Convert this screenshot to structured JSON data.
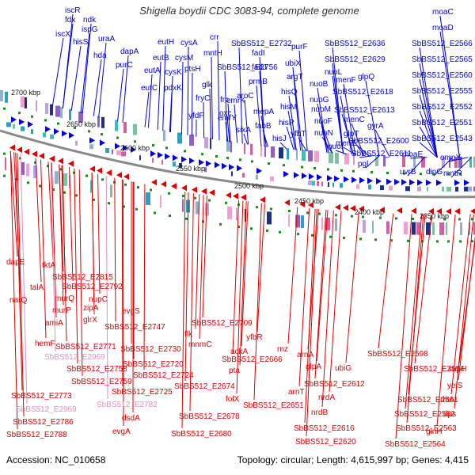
{
  "title": "Shigella boydii CDC 3083-94, complete genome",
  "footer": {
    "accession": "Accession: NC_010658",
    "summary": "Topology: circular; Length: 4,615,997 bp; Genes: 4,415"
  },
  "colors": {
    "forward": "#0000e0",
    "reverse": "#e00000",
    "highlight": "#e08fc0",
    "backbone": "#8a8a8a",
    "marker": "#1a8a1a"
  },
  "kbp_labels": [
    "2700 kbp",
    "2650 kbp",
    "2600 kbp",
    "2550 kbp",
    "2500 kbp",
    "2450 kbp",
    "2400 kbp",
    "2350 kbp"
  ],
  "top_labels": [
    {
      "text": "iscR"
    },
    {
      "text": "fdx"
    },
    {
      "text": "ndk"
    },
    {
      "text": "ispG"
    },
    {
      "text": "iscX"
    },
    {
      "text": "hisS"
    },
    {
      "text": "uraA"
    },
    {
      "text": "hda"
    },
    {
      "text": "dapA"
    },
    {
      "text": "purC"
    },
    {
      "text": "eutH"
    },
    {
      "text": "cysA"
    },
    {
      "text": "crr"
    },
    {
      "text": "eutB"
    },
    {
      "text": "cysM"
    },
    {
      "text": "mntH"
    },
    {
      "text": "SbBS512_E2732"
    },
    {
      "text": "eutA"
    },
    {
      "text": "cysK"
    },
    {
      "text": "eutC"
    },
    {
      "text": "ptsH"
    },
    {
      "text": "pdxK"
    },
    {
      "text": "SbBS512_E2756"
    },
    {
      "text": "fadI"
    },
    {
      "text": "fadJ"
    },
    {
      "text": "glk"
    },
    {
      "text": "fryC"
    },
    {
      "text": "yfdF"
    },
    {
      "text": "frc"
    },
    {
      "text": "oxc"
    },
    {
      "text": "emrK"
    },
    {
      "text": "emrY"
    },
    {
      "text": "prmB"
    },
    {
      "text": "aroC"
    },
    {
      "text": "mepA"
    },
    {
      "text": "fabB"
    },
    {
      "text": "sixA"
    },
    {
      "text": "purF"
    },
    {
      "text": "ubiX"
    },
    {
      "text": "argT"
    },
    {
      "text": "hisQ"
    },
    {
      "text": "hisM"
    },
    {
      "text": "hisP"
    },
    {
      "text": "hisJ"
    },
    {
      "text": "yfbT"
    },
    {
      "text": "SbBS512_E2636"
    },
    {
      "text": "SbBS512_E2629"
    },
    {
      "text": "nuoL"
    },
    {
      "text": "menF"
    },
    {
      "text": "nuoB"
    },
    {
      "text": "nuoM"
    },
    {
      "text": "nuoG"
    },
    {
      "text": "nuoF"
    },
    {
      "text": "nuoN"
    },
    {
      "text": "nuoI"
    },
    {
      "text": "glpQ"
    },
    {
      "text": "SbBS512_E2618"
    },
    {
      "text": "SbBS512_E2613"
    },
    {
      "text": "menC"
    },
    {
      "text": "glpT"
    },
    {
      "text": "menE"
    },
    {
      "text": "gyrA"
    },
    {
      "text": "SbBS512_E2600"
    },
    {
      "text": "SbBS512_E2611"
    },
    {
      "text": "pgl"
    },
    {
      "text": "moaC"
    },
    {
      "text": "moaD"
    },
    {
      "text": "SbBS512_E2566"
    },
    {
      "text": "SbBS512_E2565"
    },
    {
      "text": "SbBS512_E2560"
    },
    {
      "text": "SbBS512_E2555"
    },
    {
      "text": "SbBS512_E2552"
    },
    {
      "text": "SbBS512_E2551"
    },
    {
      "text": "SbBS512_E2543"
    },
    {
      "text": "moaE"
    },
    {
      "text": "ompX"
    },
    {
      "text": "uvrB"
    },
    {
      "text": "dinG"
    },
    {
      "text": "mntR"
    }
  ],
  "bottom_labels": [
    {
      "text": "dapE"
    },
    {
      "text": "tktA"
    },
    {
      "text": "SbBS512_E2815"
    },
    {
      "text": "talA"
    },
    {
      "text": "SbBS512_E2792"
    },
    {
      "text": "narQ"
    },
    {
      "text": "murQ"
    },
    {
      "text": "nupC"
    },
    {
      "text": "murP"
    },
    {
      "text": "zipA"
    },
    {
      "text": "evgS"
    },
    {
      "text": "amiA"
    },
    {
      "text": "glrX"
    },
    {
      "text": "SbBS512_E2747"
    },
    {
      "text": "SbBS512_E2709"
    },
    {
      "text": "hemF"
    },
    {
      "text": "SbBS512_E2771"
    },
    {
      "text": "flk"
    },
    {
      "text": "SbBS512_E2969",
      "pink": true
    },
    {
      "text": "SbBS512_E2730"
    },
    {
      "text": "SbBS512_E2758"
    },
    {
      "text": "SbBS512_E2720"
    },
    {
      "text": "mnmC"
    },
    {
      "text": "yfbR"
    },
    {
      "text": "SbBS512_E2724"
    },
    {
      "text": "SbBS512_E2759"
    },
    {
      "text": "SbBS512_E2773"
    },
    {
      "text": "SbBS512_E2725"
    },
    {
      "text": "SbBS512_E2969",
      "pink": true
    },
    {
      "text": "SbBS512_E2782",
      "pink": true
    },
    {
      "text": "SbBS512_E2786"
    },
    {
      "text": "dsdA"
    },
    {
      "text": "SbBS512_E2788"
    },
    {
      "text": "evgA"
    },
    {
      "text": "ackA"
    },
    {
      "text": "pta"
    },
    {
      "text": "SbBS512_E2666"
    },
    {
      "text": "SbBS512_E2674"
    },
    {
      "text": "folX"
    },
    {
      "text": "SbBS512_E2678"
    },
    {
      "text": "SbBS512_E2680"
    },
    {
      "text": "rnz"
    },
    {
      "text": "SbBS512_E2651"
    },
    {
      "text": "arnA"
    },
    {
      "text": "glpA"
    },
    {
      "text": "ubiG"
    },
    {
      "text": "SbBS512_E2598"
    },
    {
      "text": "arnT"
    },
    {
      "text": "SbBS512_E2612"
    },
    {
      "text": "nrdA"
    },
    {
      "text": "nrdB"
    },
    {
      "text": "SbBS512_E2616"
    },
    {
      "text": "SbBS512_E2620"
    },
    {
      "text": "supH"
    },
    {
      "text": "SbBS512_E2554"
    },
    {
      "text": "yeiS"
    },
    {
      "text": "SbBS512_E2561"
    },
    {
      "text": "rhtA"
    },
    {
      "text": "SbBS512_E2562"
    },
    {
      "text": "dps"
    },
    {
      "text": "SbBS512_E2563"
    },
    {
      "text": "glnH"
    },
    {
      "text": "SbBS512_E2564"
    }
  ]
}
